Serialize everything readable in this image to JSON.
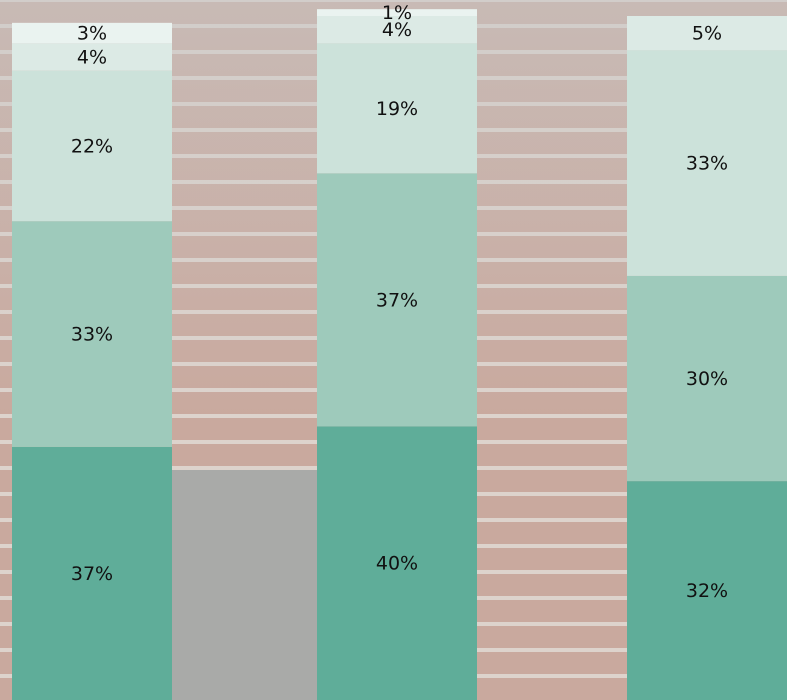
{
  "chart_data": {
    "type": "bar",
    "stacked": true,
    "categories": [
      null,
      null,
      null
    ],
    "ylim": [
      0,
      100
    ],
    "series": [
      {
        "color": "#5fad99",
        "values": [
          37,
          40,
          32
        ],
        "value_labels": [
          "37%",
          "40%",
          "32%"
        ]
      },
      {
        "color": "#9ecabb",
        "values": [
          33,
          37,
          30
        ],
        "value_labels": [
          "33%",
          "37%",
          "30%"
        ]
      },
      {
        "color": "#cce2da",
        "values": [
          22,
          19,
          33
        ],
        "value_labels": [
          "22%",
          "19%",
          "33%"
        ]
      },
      {
        "color": "#dceae5",
        "values": [
          4,
          4,
          5
        ],
        "value_labels": [
          "4%",
          "4%",
          "5%"
        ]
      },
      {
        "color": "#eaf3f0",
        "values": [
          3,
          1,
          null
        ],
        "value_labels": [
          "3%",
          "1%",
          null
        ]
      }
    ]
  }
}
